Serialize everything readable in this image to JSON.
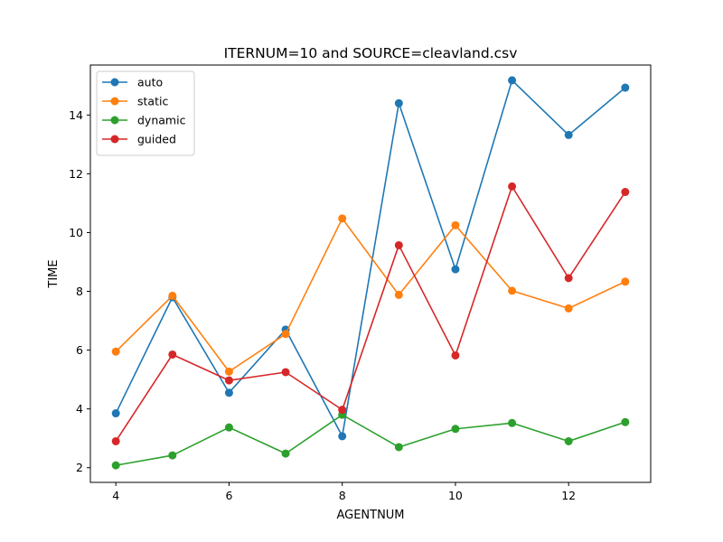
{
  "chart_data": {
    "type": "line",
    "title": "ITERNUM=10 and SOURCE=cleavland.csv",
    "xlabel": "AGENTNUM",
    "ylabel": "TIME",
    "x": [
      4,
      5,
      6,
      7,
      8,
      9,
      10,
      11,
      12,
      13
    ],
    "xlim": [
      3.55,
      13.45
    ],
    "ylim": [
      1.5,
      15.7
    ],
    "xticks": [
      4,
      6,
      8,
      10,
      12
    ],
    "yticks": [
      2,
      4,
      6,
      8,
      10,
      12,
      14
    ],
    "legend": "top-left",
    "grid": false,
    "series": [
      {
        "name": "auto",
        "color": "#1f77b4",
        "values": [
          3.85,
          7.8,
          4.55,
          6.7,
          3.07,
          14.4,
          8.75,
          15.18,
          13.32,
          14.93
        ]
      },
      {
        "name": "static",
        "color": "#ff7f0e",
        "values": [
          5.95,
          7.85,
          5.27,
          6.55,
          10.48,
          7.88,
          10.25,
          8.02,
          7.42,
          8.33
        ]
      },
      {
        "name": "dynamic",
        "color": "#2ca02c",
        "values": [
          2.08,
          2.42,
          3.37,
          2.48,
          3.8,
          2.7,
          3.32,
          3.52,
          2.9,
          3.55
        ]
      },
      {
        "name": "guided",
        "color": "#d62728",
        "values": [
          2.9,
          5.85,
          4.97,
          5.25,
          3.97,
          9.57,
          5.82,
          11.57,
          8.45,
          11.38
        ]
      }
    ]
  }
}
